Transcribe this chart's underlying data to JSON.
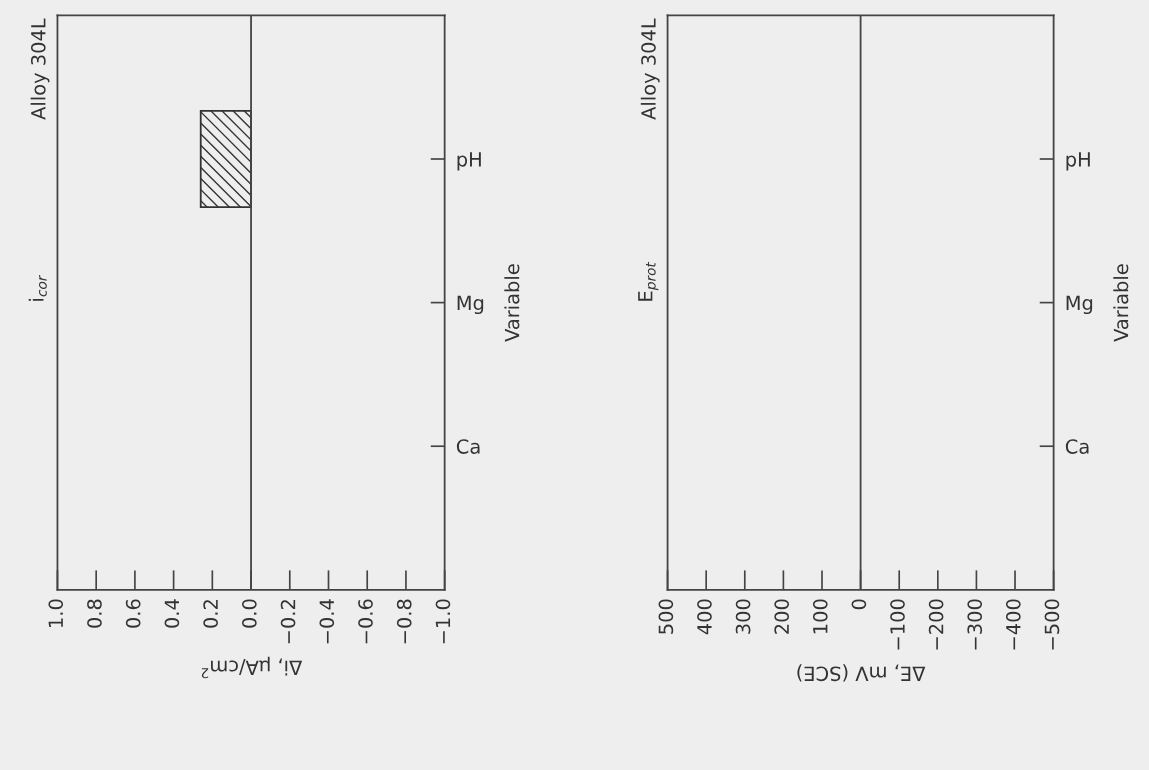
{
  "chart_data": [
    {
      "type": "bar",
      "orientation": "horizontal",
      "title": "Alloy 304L",
      "annotations": [
        "i$_{cor}$"
      ],
      "xlabel": "Δi, µA/cm$^{2}$",
      "ylabel": "Variable",
      "categories": [
        "pH",
        "Mg",
        "Ca"
      ],
      "series": [
        {
          "color": "#333333",
          "values": [
            0.26,
            null,
            null
          ]
        }
      ],
      "xlim": [
        1.0,
        -1.0
      ],
      "xticks": [
        {
          "value": 1.0,
          "label": "1.0"
        },
        0.8,
        0.6,
        0.4,
        0.2,
        {
          "value": 0.0,
          "label": "0.0"
        },
        {
          "value": -0.2,
          "label": "−0.2"
        },
        {
          "value": -0.4,
          "label": "−0.4"
        },
        {
          "value": -0.6,
          "label": "−0.6"
        },
        {
          "value": -0.8,
          "label": "−0.8"
        },
        {
          "value": -1.0,
          "label": "−1.0"
        }
      ],
      "ref_lines": [
        {
          "axis": "x",
          "value": 0
        }
      ],
      "grid": false,
      "legend": false
    },
    {
      "type": "bar",
      "orientation": "horizontal",
      "title": "Alloy 304L",
      "annotations": [
        "E$_{prot}$"
      ],
      "xlabel": "ΔE, mV (SCE)",
      "ylabel": "Variable",
      "categories": [
        "pH",
        "Mg",
        "Ca"
      ],
      "series": [
        {
          "color": "#333333",
          "values": [
            null,
            null,
            null
          ]
        }
      ],
      "xlim": [
        500,
        -500
      ],
      "xticks": [
        500,
        400,
        300,
        200,
        100,
        0,
        {
          "value": -100,
          "label": "−100"
        },
        {
          "value": -200,
          "label": "−200"
        },
        {
          "value": -300,
          "label": "−300"
        },
        {
          "value": -400,
          "label": "−400"
        },
        {
          "value": -500,
          "label": "−500"
        }
      ],
      "ref_lines": [
        {
          "axis": "x",
          "value": 0
        }
      ],
      "grid": false,
      "legend": false
    }
  ]
}
